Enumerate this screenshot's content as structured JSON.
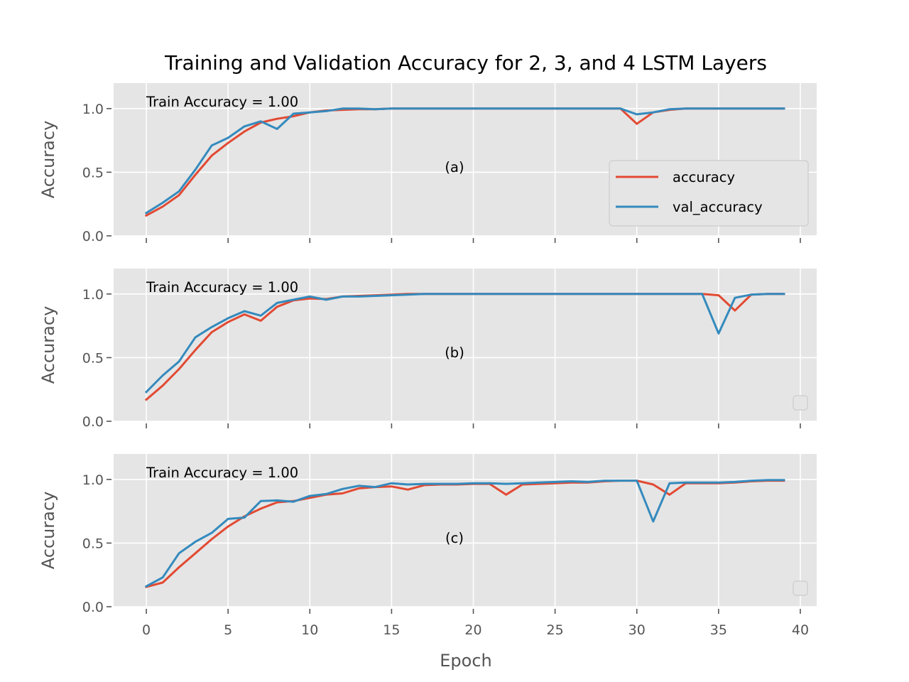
{
  "title": "Training and Validation Accuracy for 2, 3, and 4 LSTM Layers",
  "colors": {
    "accuracy": "#E24A33",
    "val_accuracy": "#348ABD",
    "panel_bg": "#E5E5E5",
    "grid": "#FFFFFF",
    "tick_text": "#555555"
  },
  "chart_data": [
    {
      "type": "line",
      "panel_label": "(a)",
      "annotation": "Train Accuracy = 1.00",
      "xlabel": "",
      "ylabel": "Accuracy",
      "xlim": [
        -2,
        41
      ],
      "ylim": [
        0,
        1.2
      ],
      "xticks": [
        0,
        5,
        10,
        15,
        20,
        25,
        30,
        35,
        40
      ],
      "yticks": [
        0.0,
        0.5,
        1.0
      ],
      "ytick_labels": [
        "0.0",
        "0.5",
        "1.0"
      ],
      "grid": true,
      "legend": {
        "placement": "lower-right",
        "entries": [
          "accuracy",
          "val_accuracy"
        ]
      },
      "x": [
        0,
        1,
        2,
        3,
        4,
        5,
        6,
        7,
        8,
        9,
        10,
        11,
        12,
        13,
        14,
        15,
        16,
        17,
        18,
        19,
        20,
        21,
        22,
        23,
        24,
        25,
        26,
        27,
        28,
        29,
        30,
        31,
        32,
        33,
        34,
        35,
        36,
        37,
        38,
        39
      ],
      "series": [
        {
          "name": "accuracy",
          "values": [
            0.16,
            0.23,
            0.32,
            0.48,
            0.63,
            0.73,
            0.82,
            0.89,
            0.92,
            0.94,
            0.97,
            0.985,
            0.99,
            0.995,
            0.995,
            1.0,
            1.0,
            1.0,
            1.0,
            1.0,
            1.0,
            1.0,
            1.0,
            1.0,
            1.0,
            1.0,
            1.0,
            1.0,
            1.0,
            1.0,
            0.88,
            0.97,
            0.99,
            1.0,
            1.0,
            1.0,
            1.0,
            1.0,
            1.0,
            1.0
          ]
        },
        {
          "name": "val_accuracy",
          "values": [
            0.18,
            0.26,
            0.35,
            0.52,
            0.71,
            0.77,
            0.86,
            0.9,
            0.84,
            0.96,
            0.97,
            0.98,
            1.0,
            1.0,
            0.995,
            1.0,
            1.0,
            1.0,
            1.0,
            1.0,
            1.0,
            1.0,
            1.0,
            1.0,
            1.0,
            1.0,
            1.0,
            1.0,
            1.0,
            1.0,
            0.955,
            0.97,
            0.995,
            1.0,
            1.0,
            1.0,
            1.0,
            1.0,
            1.0,
            1.0
          ]
        }
      ]
    },
    {
      "type": "line",
      "panel_label": "(b)",
      "annotation": "Train Accuracy = 1.00",
      "xlabel": "",
      "ylabel": "Accuracy",
      "xlim": [
        -2,
        41
      ],
      "ylim": [
        0,
        1.2
      ],
      "xticks": [
        0,
        5,
        10,
        15,
        20,
        25,
        30,
        35,
        40
      ],
      "yticks": [
        0.0,
        0.5,
        1.0
      ],
      "ytick_labels": [
        "0.0",
        "0.5",
        "1.0"
      ],
      "grid": true,
      "legend": {
        "placement": "lower-right",
        "entries": []
      },
      "x": [
        0,
        1,
        2,
        3,
        4,
        5,
        6,
        7,
        8,
        9,
        10,
        11,
        12,
        13,
        14,
        15,
        16,
        17,
        18,
        19,
        20,
        21,
        22,
        23,
        24,
        25,
        26,
        27,
        28,
        29,
        30,
        31,
        32,
        33,
        34,
        35,
        36,
        37,
        38,
        39
      ],
      "series": [
        {
          "name": "accuracy",
          "values": [
            0.17,
            0.28,
            0.41,
            0.56,
            0.7,
            0.78,
            0.84,
            0.79,
            0.9,
            0.95,
            0.965,
            0.96,
            0.98,
            0.985,
            0.99,
            0.995,
            1.0,
            1.0,
            1.0,
            1.0,
            1.0,
            1.0,
            1.0,
            1.0,
            1.0,
            1.0,
            1.0,
            1.0,
            1.0,
            1.0,
            1.0,
            1.0,
            1.0,
            1.0,
            1.0,
            0.99,
            0.87,
            0.995,
            1.0,
            1.0
          ]
        },
        {
          "name": "val_accuracy",
          "values": [
            0.23,
            0.36,
            0.47,
            0.66,
            0.74,
            0.81,
            0.865,
            0.83,
            0.93,
            0.955,
            0.98,
            0.955,
            0.98,
            0.98,
            0.985,
            0.99,
            0.995,
            1.0,
            1.0,
            1.0,
            1.0,
            1.0,
            1.0,
            1.0,
            1.0,
            1.0,
            1.0,
            1.0,
            1.0,
            1.0,
            1.0,
            1.0,
            1.0,
            1.0,
            1.0,
            0.69,
            0.97,
            0.995,
            1.0,
            1.0
          ]
        }
      ]
    },
    {
      "type": "line",
      "panel_label": "(c)",
      "annotation": "Train Accuracy = 1.00",
      "xlabel": "Epoch",
      "ylabel": "Accuracy",
      "xlim": [
        -2,
        41
      ],
      "ylim": [
        0,
        1.2
      ],
      "xticks": [
        0,
        5,
        10,
        15,
        20,
        25,
        30,
        35,
        40
      ],
      "xtick_labels": [
        "0",
        "5",
        "10",
        "15",
        "20",
        "25",
        "30",
        "35",
        "40"
      ],
      "yticks": [
        0.0,
        0.5,
        1.0
      ],
      "ytick_labels": [
        "0.0",
        "0.5",
        "1.0"
      ],
      "grid": true,
      "legend": {
        "placement": "lower-right",
        "entries": []
      },
      "x": [
        0,
        1,
        2,
        3,
        4,
        5,
        6,
        7,
        8,
        9,
        10,
        11,
        12,
        13,
        14,
        15,
        16,
        17,
        18,
        19,
        20,
        21,
        22,
        23,
        24,
        25,
        26,
        27,
        28,
        29,
        30,
        31,
        32,
        33,
        34,
        35,
        36,
        37,
        38,
        39
      ],
      "series": [
        {
          "name": "accuracy",
          "values": [
            0.155,
            0.19,
            0.31,
            0.42,
            0.53,
            0.63,
            0.71,
            0.77,
            0.82,
            0.83,
            0.855,
            0.88,
            0.89,
            0.93,
            0.94,
            0.945,
            0.92,
            0.955,
            0.96,
            0.96,
            0.965,
            0.965,
            0.88,
            0.96,
            0.965,
            0.97,
            0.975,
            0.975,
            0.985,
            0.99,
            0.99,
            0.96,
            0.88,
            0.97,
            0.97,
            0.97,
            0.975,
            0.985,
            0.99,
            0.99
          ]
        },
        {
          "name": "val_accuracy",
          "values": [
            0.16,
            0.23,
            0.42,
            0.51,
            0.58,
            0.69,
            0.7,
            0.83,
            0.835,
            0.825,
            0.87,
            0.885,
            0.925,
            0.95,
            0.94,
            0.97,
            0.96,
            0.965,
            0.965,
            0.965,
            0.97,
            0.97,
            0.965,
            0.97,
            0.975,
            0.98,
            0.985,
            0.98,
            0.99,
            0.99,
            0.99,
            0.67,
            0.97,
            0.975,
            0.975,
            0.975,
            0.98,
            0.99,
            0.995,
            0.995
          ]
        }
      ]
    }
  ]
}
